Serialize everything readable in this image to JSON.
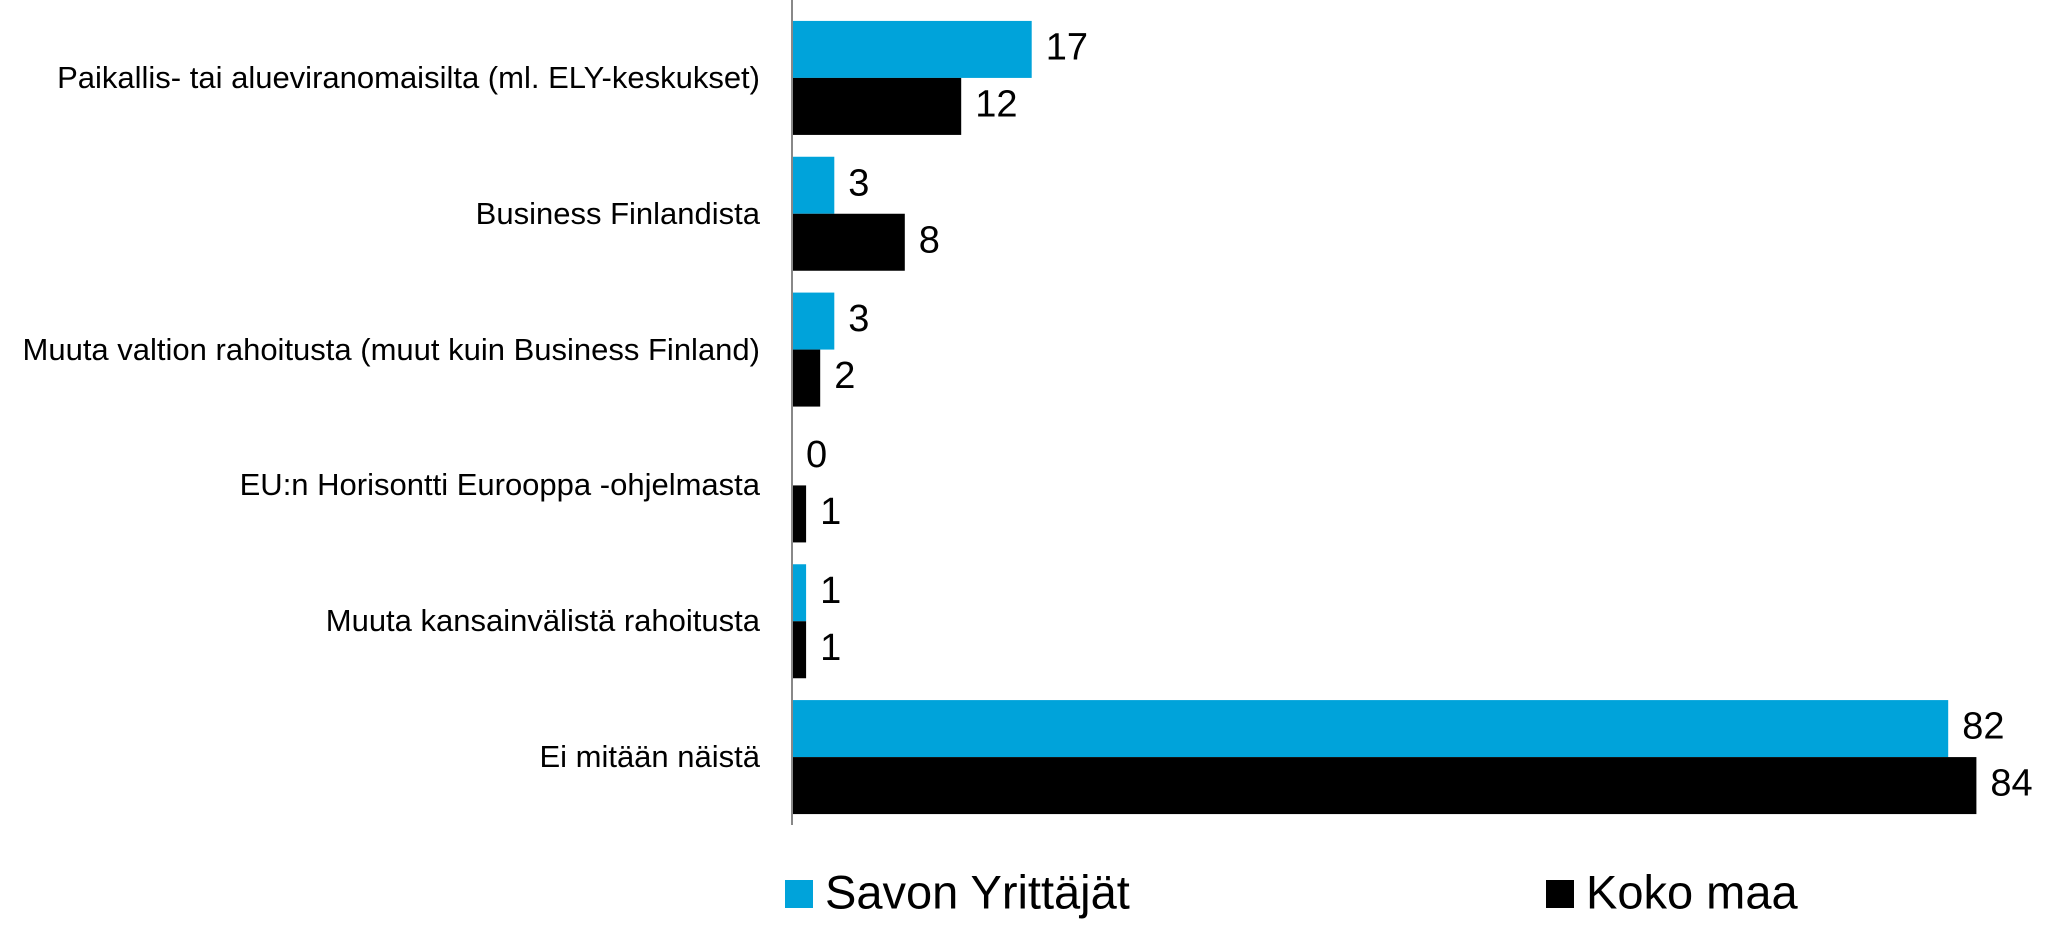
{
  "chart_data": {
    "type": "bar",
    "orientation": "horizontal",
    "categories": [
      "Paikallis- tai alueviranomaisilta (ml. ELY-keskukset)",
      "Business Finlandista",
      "Muuta valtion rahoitusta (muut kuin Business Finland)",
      "EU:n Horisontti Eurooppa -ohjelmasta",
      "Muuta kansainvälistä rahoitusta",
      "Ei mitään näistä"
    ],
    "series": [
      {
        "name": "Savon Yrittäjät",
        "color": "#00a3da",
        "values": [
          17,
          3,
          3,
          0,
          1,
          82
        ]
      },
      {
        "name": "Koko maa",
        "color": "#000000",
        "values": [
          12,
          8,
          2,
          1,
          1,
          84
        ]
      }
    ],
    "legend": "bottom"
  }
}
